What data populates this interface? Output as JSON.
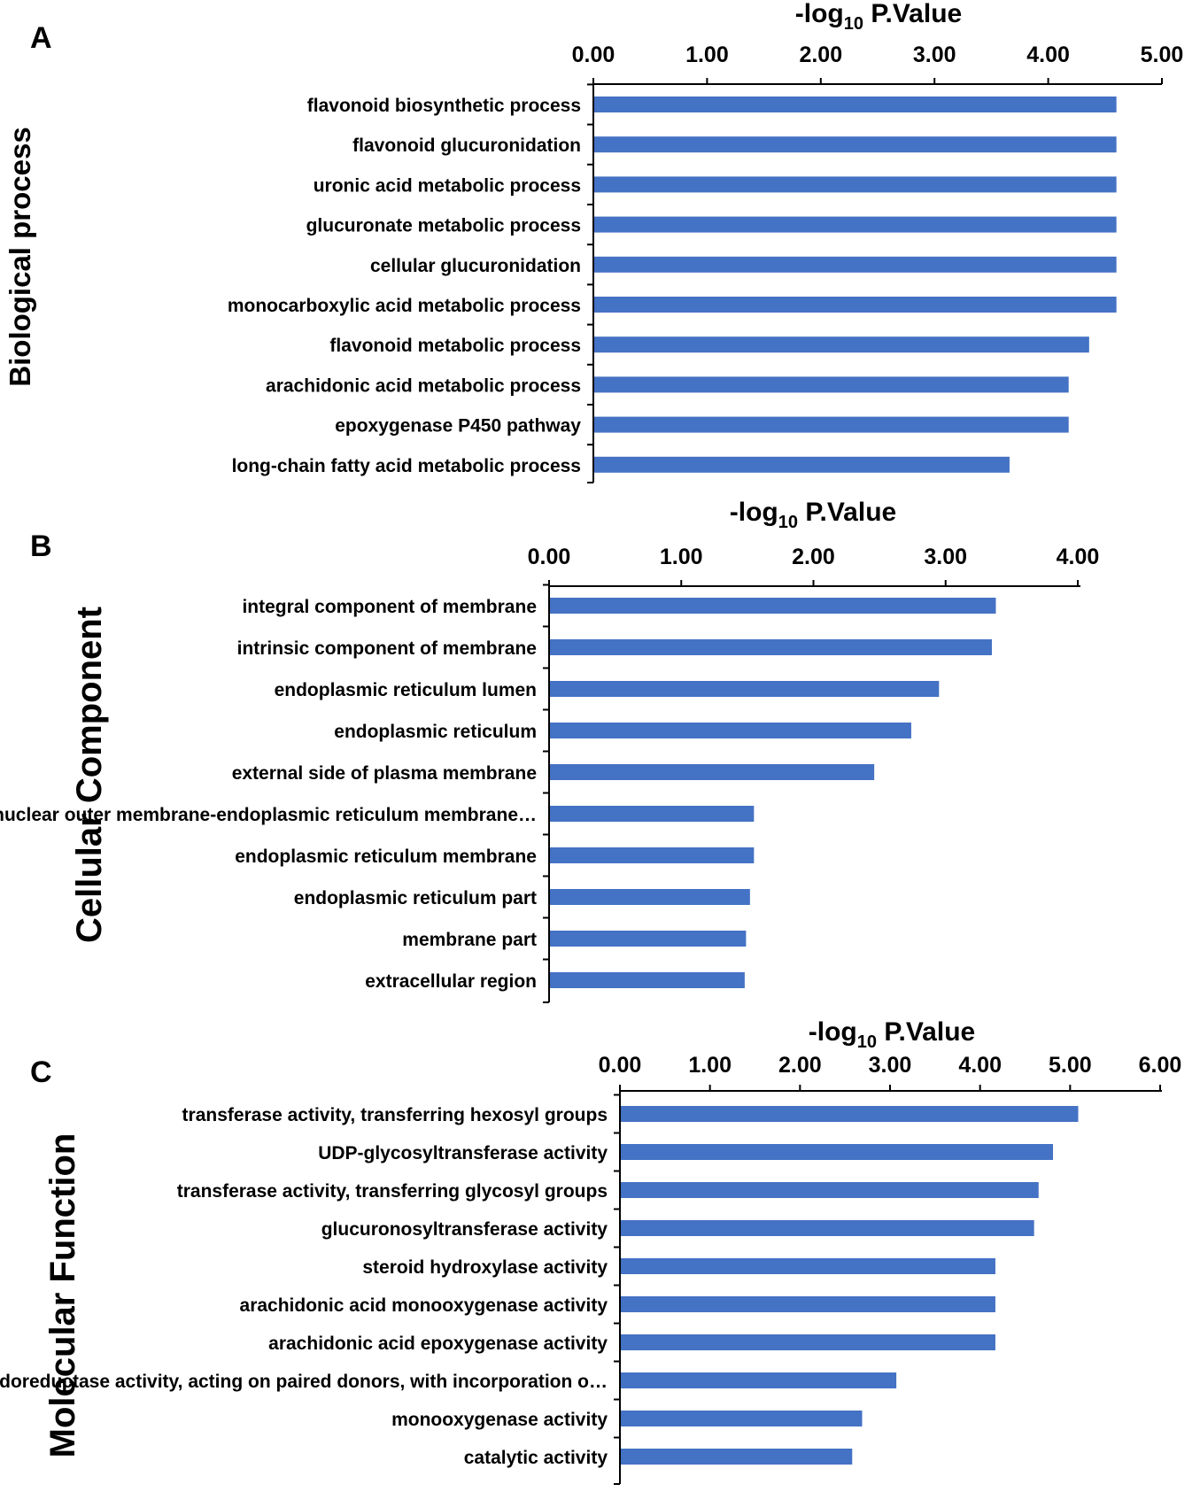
{
  "chart_data": [
    {
      "panel": "A",
      "type": "bar",
      "orientation": "horizontal",
      "ylabel": "Biological process",
      "xlabel_main": "-log",
      "xlabel_sub": "10",
      "xlabel_rest": " P.Value",
      "xlim": [
        0,
        5
      ],
      "ticks": [
        0,
        1,
        2,
        3,
        4,
        5
      ],
      "tick_labels": [
        "0.00",
        "1.00",
        "2.00",
        "3.00",
        "4.00",
        "5.00"
      ],
      "categories": [
        "flavonoid biosynthetic process",
        "flavonoid glucuronidation",
        "uronic acid metabolic process",
        "glucuronate metabolic process",
        "cellular glucuronidation",
        "monocarboxylic acid metabolic process",
        "flavonoid metabolic process",
        "arachidonic acid metabolic process",
        "epoxygenase P450 pathway",
        "long-chain fatty acid metabolic process"
      ],
      "values": [
        4.6,
        4.6,
        4.6,
        4.6,
        4.6,
        4.6,
        4.36,
        4.18,
        4.18,
        3.66
      ]
    },
    {
      "panel": "B",
      "type": "bar",
      "orientation": "horizontal",
      "ylabel": "Cellular Component",
      "xlabel_main": "-log",
      "xlabel_sub": "10",
      "xlabel_rest": " P.Value",
      "xlim": [
        0,
        4
      ],
      "ticks": [
        0,
        1,
        2,
        3,
        4
      ],
      "tick_labels": [
        "0.00",
        "1.00",
        "2.00",
        "3.00",
        "4.00"
      ],
      "categories": [
        "integral component of membrane",
        "intrinsic component of membrane",
        "endoplasmic reticulum lumen",
        "endoplasmic reticulum",
        "external side of plasma membrane",
        "nuclear outer membrane-endoplasmic reticulum membrane…",
        "endoplasmic reticulum membrane",
        "endoplasmic reticulum part",
        "membrane part",
        "extracellular region"
      ],
      "values": [
        3.38,
        3.35,
        2.95,
        2.74,
        2.46,
        1.55,
        1.55,
        1.52,
        1.49,
        1.48
      ]
    },
    {
      "panel": "C",
      "type": "bar",
      "orientation": "horizontal",
      "ylabel": "Molecular Function",
      "xlabel_main": "-log",
      "xlabel_sub": "10",
      "xlabel_rest": " P.Value",
      "xlim": [
        0,
        6
      ],
      "ticks": [
        0,
        1,
        2,
        3,
        4,
        5,
        6
      ],
      "tick_labels": [
        "0.00",
        "1.00",
        "2.00",
        "3.00",
        "4.00",
        "5.00",
        "6.00"
      ],
      "categories": [
        "transferase activity, transferring hexosyl groups",
        "UDP-glycosyltransferase activity",
        "transferase activity, transferring glycosyl groups",
        "glucuronosyltransferase activity",
        "steroid hydroxylase activity",
        "arachidonic acid monooxygenase activity",
        "arachidonic acid epoxygenase activity",
        "oxidoreductase activity, acting on paired donors, with incorporation o…",
        "monooxygenase activity",
        "catalytic activity"
      ],
      "values": [
        5.09,
        4.81,
        4.65,
        4.6,
        4.17,
        4.17,
        4.17,
        3.07,
        2.69,
        2.58
      ]
    }
  ],
  "colors": {
    "bar": "#4472C4",
    "axis": "#000000",
    "text": "#000000"
  }
}
